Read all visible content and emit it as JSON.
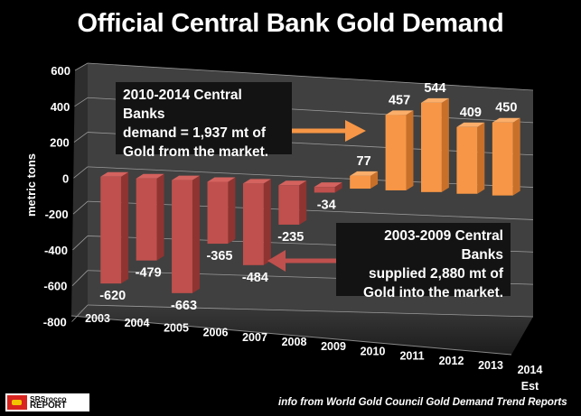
{
  "chart_data": {
    "type": "bar",
    "title": "Official Central Bank Gold Demand",
    "xlabel": "",
    "ylabel": "metric tons",
    "ylim": [
      -800,
      600
    ],
    "yticks": [
      600,
      400,
      200,
      0,
      -200,
      -400,
      -600,
      -800
    ],
    "ytick_labels": [
      "600",
      "400",
      "200",
      "0",
      "-200",
      "-400",
      "-600",
      "-800"
    ],
    "categories": [
      "2003",
      "2004",
      "2005",
      "2006",
      "2007",
      "2008",
      "2009",
      "2010",
      "2011",
      "2012",
      "2013",
      "2014"
    ],
    "category_sublabels": [
      "",
      "",
      "",
      "",
      "",
      "",
      "",
      "",
      "",
      "",
      "",
      "Est"
    ],
    "values": [
      -620,
      -479,
      -663,
      -365,
      -484,
      -235,
      -34,
      77,
      457,
      544,
      409,
      450
    ],
    "value_labels": [
      "-620",
      "-479",
      "-663",
      "-365",
      "-484",
      "-235",
      "-34",
      "77",
      "457",
      "544",
      "409",
      "450"
    ],
    "negative_color": "#c0504d",
    "positive_color": "#f79646",
    "grid": true,
    "style": "3d-column",
    "legend": "none",
    "annotations": [
      {
        "id": "demand",
        "lines": [
          "2010-2014 Central Banks",
          "demand = 1,937 mt of",
          "Gold from the market."
        ],
        "arrow_color": "#f79646",
        "arrow_direction": "right"
      },
      {
        "id": "supply",
        "lines": [
          "2003-2009 Central Banks",
          "supplied 2,880 mt of",
          "Gold into the market."
        ],
        "arrow_color": "#c0504d",
        "arrow_direction": "left"
      }
    ]
  },
  "footer": {
    "source": "info from World Gold Council Gold Demand Trend Reports",
    "logo_line1": "SRSrocco",
    "logo_line2": "REPORT"
  },
  "colors": {
    "background": "#000000",
    "plot_wall": "#404040",
    "callout_bg": "#131313"
  }
}
